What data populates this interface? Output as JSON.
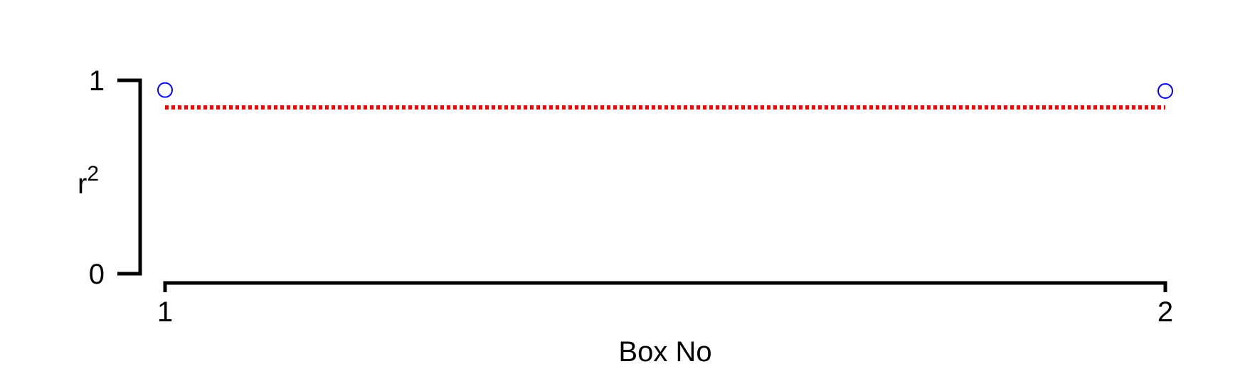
{
  "chart_data": {
    "type": "scatter",
    "title": "",
    "xlabel": "Box No",
    "ylabel": {
      "base": "r",
      "superscript": "2"
    },
    "x_ticks": [
      1,
      2
    ],
    "y_ticks": [
      0,
      1
    ],
    "xlim": [
      1,
      2
    ],
    "ylim": [
      0,
      1
    ],
    "grid": false,
    "series": [
      {
        "type": "scatter",
        "marker": "open-circle",
        "color": "#0000ff",
        "points": [
          {
            "x": 1,
            "y": 0.95
          },
          {
            "x": 2,
            "y": 0.945
          }
        ]
      },
      {
        "type": "line",
        "style": "dotted",
        "color": "#ff0000",
        "points": [
          {
            "x": 1,
            "y": 0.86
          },
          {
            "x": 2,
            "y": 0.86
          }
        ]
      }
    ]
  }
}
